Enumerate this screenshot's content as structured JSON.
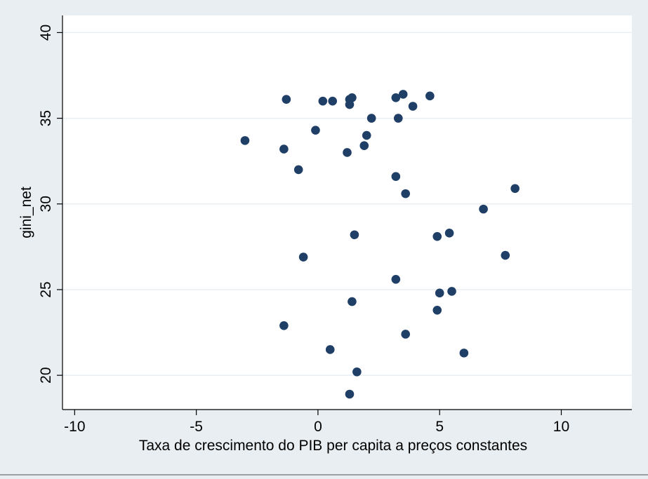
{
  "chart_data": {
    "type": "scatter",
    "title": "",
    "xlabel": "Taxa de crescimento do PIB per capita a preços constantes",
    "ylabel": "gini_net",
    "xlim": [
      -10.5,
      12.9
    ],
    "ylim": [
      18,
      41
    ],
    "x_ticks": [
      -10,
      -5,
      0,
      5,
      10
    ],
    "x_tick_labels": [
      "-10",
      "-5",
      "0",
      "5",
      "10"
    ],
    "y_ticks": [
      20,
      25,
      30,
      35,
      40
    ],
    "y_tick_labels": [
      "20",
      "25",
      "30",
      "35",
      "40"
    ],
    "grid": "horizontal",
    "colors": {
      "marker": "#1f3f66",
      "plot_bg": "#ffffff",
      "outer_bg": "#e8eef2",
      "grid": "#e8eef2"
    },
    "points": [
      {
        "x": -1.3,
        "y": 36.1
      },
      {
        "x": 0.2,
        "y": 36.0
      },
      {
        "x": 0.6,
        "y": 36.0
      },
      {
        "x": 1.3,
        "y": 36.1
      },
      {
        "x": 1.4,
        "y": 36.2
      },
      {
        "x": 1.3,
        "y": 35.8
      },
      {
        "x": 3.2,
        "y": 36.2
      },
      {
        "x": 3.5,
        "y": 36.4
      },
      {
        "x": 4.6,
        "y": 36.3
      },
      {
        "x": 3.9,
        "y": 35.7
      },
      {
        "x": 2.2,
        "y": 35.0
      },
      {
        "x": 3.3,
        "y": 35.0
      },
      {
        "x": -0.1,
        "y": 34.3
      },
      {
        "x": 2.0,
        "y": 34.0
      },
      {
        "x": -3.0,
        "y": 33.7
      },
      {
        "x": -1.4,
        "y": 33.2
      },
      {
        "x": 1.9,
        "y": 33.4
      },
      {
        "x": 1.2,
        "y": 33.0
      },
      {
        "x": -0.8,
        "y": 32.0
      },
      {
        "x": 3.2,
        "y": 31.6
      },
      {
        "x": 3.6,
        "y": 30.6
      },
      {
        "x": 8.1,
        "y": 30.9
      },
      {
        "x": 6.8,
        "y": 29.7
      },
      {
        "x": 1.5,
        "y": 28.2
      },
      {
        "x": 4.9,
        "y": 28.1
      },
      {
        "x": 5.4,
        "y": 28.3
      },
      {
        "x": -0.6,
        "y": 26.9
      },
      {
        "x": 7.7,
        "y": 27.0
      },
      {
        "x": 3.2,
        "y": 25.6
      },
      {
        "x": 5.0,
        "y": 24.8
      },
      {
        "x": 5.5,
        "y": 24.9
      },
      {
        "x": 1.4,
        "y": 24.3
      },
      {
        "x": 4.9,
        "y": 23.8
      },
      {
        "x": -1.4,
        "y": 22.9
      },
      {
        "x": 3.6,
        "y": 22.4
      },
      {
        "x": 0.5,
        "y": 21.5
      },
      {
        "x": 6.0,
        "y": 21.3
      },
      {
        "x": 1.6,
        "y": 20.2
      },
      {
        "x": 1.3,
        "y": 18.9
      }
    ]
  }
}
